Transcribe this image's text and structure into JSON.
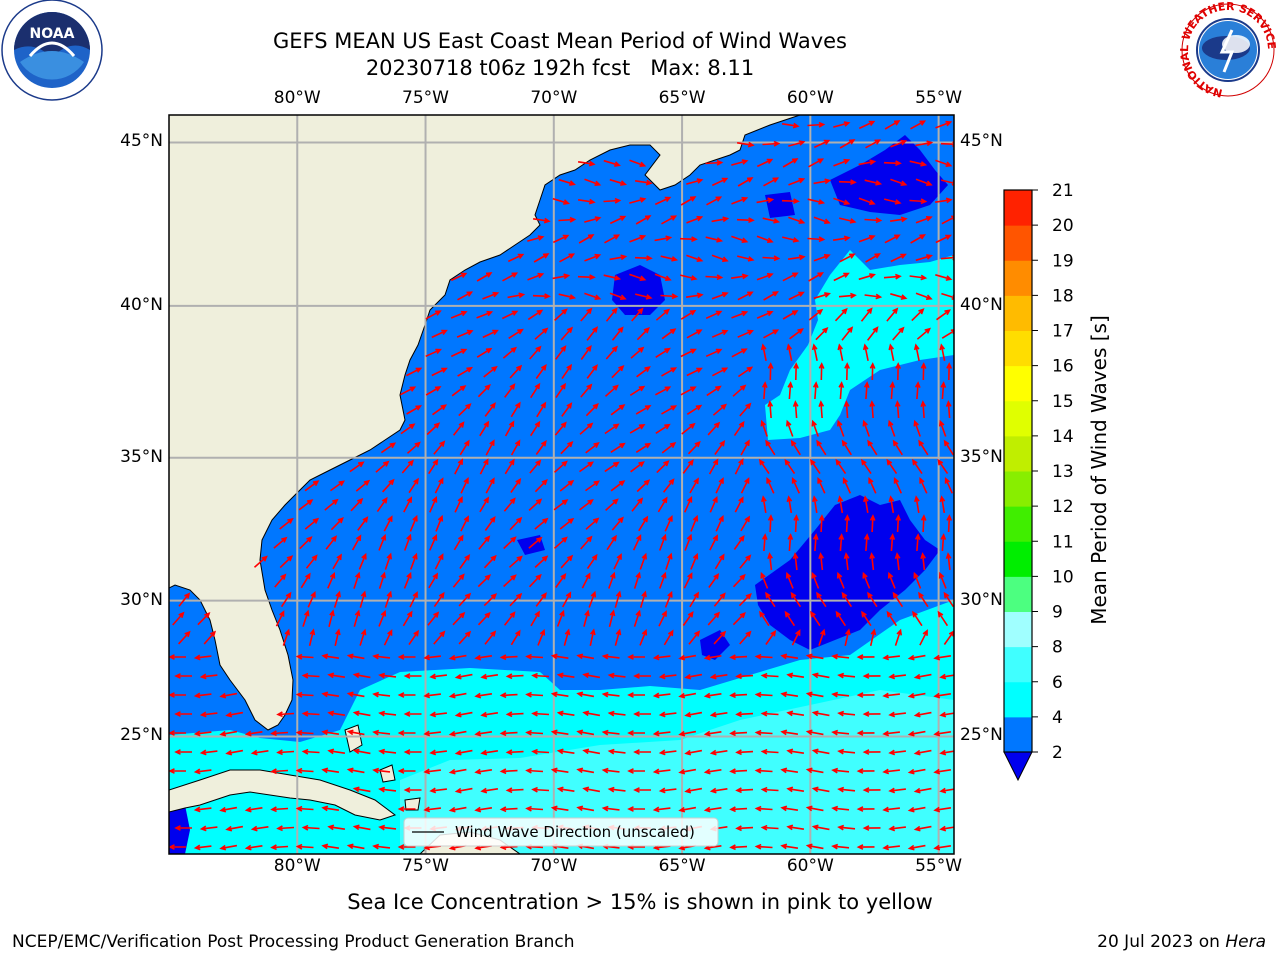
{
  "header": {
    "title": "GEFS MEAN US East Coast Mean Period of Wind Waves",
    "subtitle": "20230718 t06z 192h fcst",
    "max_label": "Max: 8.11"
  },
  "logos": {
    "noaa_text": "NOAA",
    "nws_ring_text": "NATIONAL WEATHER SERVICE"
  },
  "map": {
    "lon_ticks": [
      "80°W",
      "75°W",
      "70°W",
      "65°W",
      "60°W",
      "55°W"
    ],
    "lon_values": [
      -80,
      -75,
      -70,
      -65,
      -60,
      -55
    ],
    "lat_ticks": [
      "45°N",
      "40°N",
      "35°N",
      "30°N",
      "25°N"
    ],
    "lat_values": [
      45,
      40,
      35,
      30,
      25
    ],
    "extent": {
      "lon_min": -85,
      "lon_max": -54.4,
      "lat_min": 20.5,
      "lat_max": 45.8
    },
    "legend_label": "Wind Wave Direction (unscaled)",
    "vector_color": "#ff0000",
    "land_color": "#efefdc",
    "colors": {
      "c2": "#0077ff",
      "c4": "#00ffff",
      "c6": "#40ffff",
      "c8": "#a0ffff",
      "below": "#0000ee"
    }
  },
  "colorbar": {
    "label": "Mean Period of Wind Waves [s]",
    "ticks": [
      "2",
      "4",
      "6",
      "8",
      "9",
      "10",
      "11",
      "12",
      "13",
      "14",
      "15",
      "16",
      "17",
      "18",
      "19",
      "20",
      "21"
    ],
    "colors": [
      "#0077ff",
      "#00ffff",
      "#40ffff",
      "#a0ffff",
      "#4cff80",
      "#00ee00",
      "#40ee00",
      "#88ee00",
      "#c0ee00",
      "#e0ff00",
      "#ffff00",
      "#ffdd00",
      "#ffbb00",
      "#ff8c00",
      "#ff5500",
      "#ff2200"
    ],
    "extend_color": "#0000ee"
  },
  "footer": {
    "note": "Sea Ice Concentration > 15% is shown in pink to yellow",
    "credit": "NCEP/EMC/Verification Post Processing Product Generation Branch",
    "date": "20 Jul 2023 on ",
    "machine": "Hera"
  }
}
